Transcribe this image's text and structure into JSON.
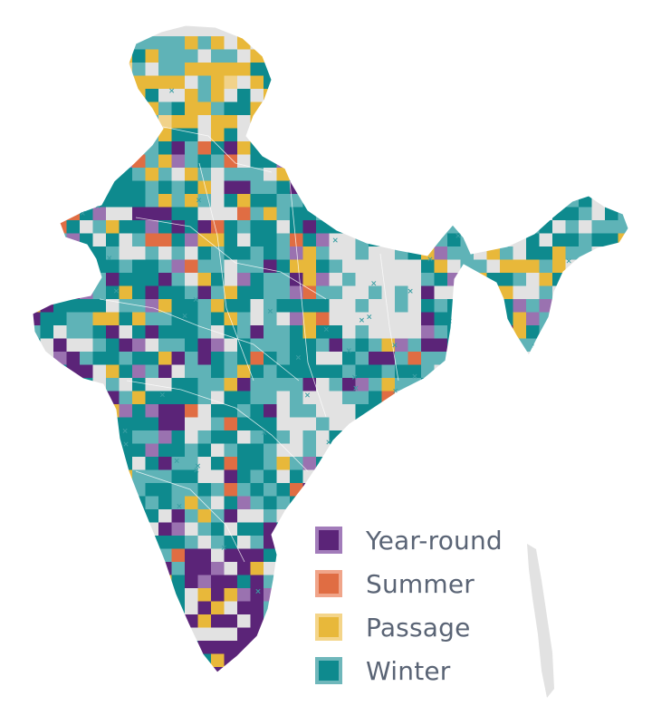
{
  "legend": {
    "items": [
      {
        "label": "Year-round",
        "fill": "#5b2478",
        "border": "#a27cba"
      },
      {
        "label": "Summer",
        "fill": "#e06d43",
        "border": "#f0a58a"
      },
      {
        "label": "Passage",
        "fill": "#e8b83a",
        "border": "#f4d58a"
      },
      {
        "label": "Winter",
        "fill": "#0e8a8e",
        "border": "#6fb7bb"
      }
    ]
  },
  "colors": {
    "land": "#e2e2e2",
    "ocean": "#ffffff",
    "border": "#ffffff",
    "winter_dark": "#0e8a8e",
    "winter_light": "#5fb3b7",
    "year_round": "#5b2478",
    "year_round_light": "#9a72b0",
    "summer": "#e06d43",
    "passage": "#e8b83a",
    "passage_light": "#f1d28a",
    "marker": "#3a9ea3"
  }
}
